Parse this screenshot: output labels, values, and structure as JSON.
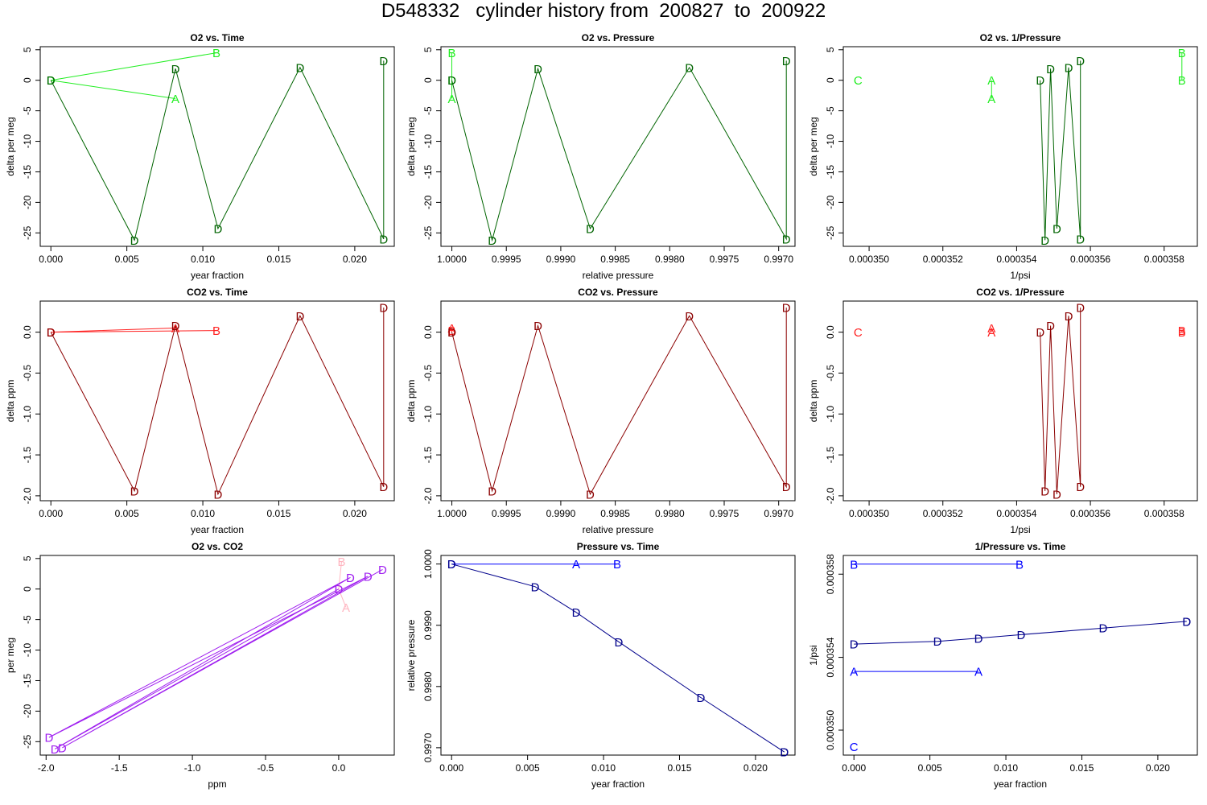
{
  "page": {
    "title": "D548332   cylinder history from  200827  to  200922"
  },
  "colors": {
    "o2_light": "#22ee22",
    "o2_dark": "#006400",
    "co2_light": "#ff2222",
    "co2_dark": "#8b0000",
    "oc_light": "#ffb6c1",
    "oc_dark": "#a020f0",
    "p_light": "#0000ff",
    "p_dark": "#00008b"
  },
  "chart_data": [
    {
      "type": "line",
      "title": "O2 vs. Time",
      "xlabel": "year fraction",
      "ylabel": "delta per meg",
      "xlim": [
        -0.0007,
        0.0226
      ],
      "ylim": [
        -27.2,
        5.5
      ],
      "xticks": [
        0,
        0.005,
        0.01,
        0.015,
        0.02
      ],
      "xtick_labels": [
        "0.000",
        "0.005",
        "0.010",
        "0.015",
        "0.020"
      ],
      "yticks": [
        5,
        0,
        -5,
        -10,
        -15,
        -20,
        -25
      ],
      "ytick_labels": [
        "5",
        "0",
        "-5",
        "-10",
        "-15",
        "-20",
        "-25"
      ],
      "series": [
        {
          "style": "light",
          "points": [
            [
              0,
              0,
              "D"
            ],
            [
              0.0109,
              4.5,
              "B"
            ],
            [
              0,
              0,
              "D"
            ],
            [
              0.0082,
              -3.0,
              "A"
            ],
            [
              0,
              0,
              "D"
            ]
          ]
        },
        {
          "style": "dark",
          "points": [
            [
              0,
              0,
              "D"
            ],
            [
              0.0055,
              -26.2,
              "D"
            ],
            [
              0.0082,
              1.9,
              "D"
            ],
            [
              0.011,
              -24.3,
              "D"
            ],
            [
              0.0164,
              2.1,
              "D"
            ],
            [
              0.0219,
              -26.0,
              "D"
            ],
            [
              0.0219,
              3.2,
              "D"
            ]
          ]
        }
      ]
    },
    {
      "type": "line",
      "title": "O2 vs. Pressure",
      "xlabel": "relative pressure",
      "ylabel": "delta per meg",
      "xlim": [
        1.0001,
        0.99685
      ],
      "ylim": [
        -27.2,
        5.5
      ],
      "xticks": [
        1.0,
        0.9995,
        0.999,
        0.9985,
        0.998,
        0.9975,
        0.997
      ],
      "xtick_labels": [
        "1.0000",
        "0.9995",
        "0.9990",
        "0.9985",
        "0.9980",
        "0.9975",
        "0.9970"
      ],
      "yticks": [
        5,
        0,
        -5,
        -10,
        -15,
        -20,
        -25
      ],
      "ytick_labels": [
        "5",
        "0",
        "-5",
        "-10",
        "-15",
        "-20",
        "-25"
      ],
      "series": [
        {
          "style": "light",
          "points": [
            [
              1.0,
              4.5,
              "B"
            ],
            [
              1.0,
              0,
              "D"
            ],
            [
              1.0,
              -3.0,
              "A"
            ]
          ]
        },
        {
          "style": "dark",
          "points": [
            [
              1.0,
              0,
              "D"
            ],
            [
              0.99963,
              -26.2,
              "D"
            ],
            [
              0.99921,
              1.9,
              "D"
            ],
            [
              0.99873,
              -24.3,
              "D"
            ],
            [
              0.99782,
              2.1,
              "D"
            ],
            [
              0.99693,
              -26.0,
              "D"
            ],
            [
              0.99693,
              3.2,
              "D"
            ]
          ]
        }
      ]
    },
    {
      "type": "line",
      "title": "O2 vs. 1/Pressure",
      "xlabel": "1/psi",
      "ylabel": "delta per meg",
      "xlim": [
        0.0003493,
        0.0003589
      ],
      "ylim": [
        -27.2,
        5.5
      ],
      "xticks": [
        0.00035,
        0.000352,
        0.000354,
        0.000356,
        0.000358
      ],
      "xtick_labels": [
        "0.000350",
        "0.000352",
        "0.000354",
        "0.000356",
        "0.000358"
      ],
      "yticks": [
        5,
        0,
        -5,
        -10,
        -15,
        -20,
        -25
      ],
      "ytick_labels": [
        "5",
        "0",
        "-5",
        "-10",
        "-15",
        "-20",
        "-25"
      ],
      "series": [
        {
          "style": "light",
          "points": [
            [
              0.0003497,
              0,
              "C"
            ]
          ]
        },
        {
          "style": "light",
          "points": [
            [
              0.00035332,
              0,
              "A"
            ],
            [
              0.00035332,
              -3.0,
              "A"
            ]
          ]
        },
        {
          "style": "light",
          "points": [
            [
              0.00035848,
              4.5,
              "B"
            ],
            [
              0.00035848,
              0,
              "B"
            ]
          ]
        },
        {
          "style": "dark",
          "points": [
            [
              0.00035464,
              0,
              "D"
            ],
            [
              0.00035477,
              -26.2,
              "D"
            ],
            [
              0.00035492,
              1.9,
              "D"
            ],
            [
              0.00035509,
              -24.3,
              "D"
            ],
            [
              0.00035541,
              2.1,
              "D"
            ],
            [
              0.00035573,
              -26.0,
              "D"
            ],
            [
              0.00035573,
              3.2,
              "D"
            ]
          ]
        }
      ]
    },
    {
      "type": "line",
      "title": "CO2 vs. Time",
      "xlabel": "year fraction",
      "ylabel": "delta ppm",
      "xlim": [
        -0.0007,
        0.0226
      ],
      "ylim": [
        -2.06,
        0.38
      ],
      "xticks": [
        0,
        0.005,
        0.01,
        0.015,
        0.02
      ],
      "xtick_labels": [
        "0.000",
        "0.005",
        "0.010",
        "0.015",
        "0.020"
      ],
      "yticks": [
        0.0,
        -0.5,
        -1.0,
        -1.5,
        -2.0
      ],
      "ytick_labels": [
        "0.0",
        "-0.5",
        "-1.0",
        "-1.5",
        "-2.0"
      ],
      "series": [
        {
          "style": "light",
          "points": [
            [
              0,
              0,
              "D"
            ],
            [
              0.0109,
              0.02,
              "B"
            ],
            [
              0,
              0,
              "D"
            ],
            [
              0.0082,
              0.05,
              "A"
            ],
            [
              0,
              0,
              "D"
            ]
          ]
        },
        {
          "style": "dark",
          "points": [
            [
              0,
              0,
              "D"
            ],
            [
              0.0055,
              -1.94,
              "D"
            ],
            [
              0.0082,
              0.08,
              "D"
            ],
            [
              0.011,
              -1.98,
              "D"
            ],
            [
              0.0164,
              0.2,
              "D"
            ],
            [
              0.0219,
              -1.89,
              "D"
            ],
            [
              0.0219,
              0.3,
              "D"
            ]
          ]
        }
      ]
    },
    {
      "type": "line",
      "title": "CO2 vs. Pressure",
      "xlabel": "relative pressure",
      "ylabel": "delta ppm",
      "xlim": [
        1.0001,
        0.99685
      ],
      "ylim": [
        -2.06,
        0.38
      ],
      "xticks": [
        1.0,
        0.9995,
        0.999,
        0.9985,
        0.998,
        0.9975,
        0.997
      ],
      "xtick_labels": [
        "1.0000",
        "0.9995",
        "0.9990",
        "0.9985",
        "0.9980",
        "0.9975",
        "0.9970"
      ],
      "yticks": [
        0.0,
        -0.5,
        -1.0,
        -1.5,
        -2.0
      ],
      "ytick_labels": [
        "0.0",
        "-0.5",
        "-1.0",
        "-1.5",
        "-2.0"
      ],
      "series": [
        {
          "style": "light",
          "points": [
            [
              1.0,
              0.02,
              "B"
            ],
            [
              1.0,
              0,
              "D"
            ],
            [
              1.0,
              0.05,
              "A"
            ]
          ]
        },
        {
          "style": "dark",
          "points": [
            [
              1.0,
              0,
              "D"
            ],
            [
              0.99963,
              -1.94,
              "D"
            ],
            [
              0.99921,
              0.08,
              "D"
            ],
            [
              0.99873,
              -1.98,
              "D"
            ],
            [
              0.99782,
              0.2,
              "D"
            ],
            [
              0.99693,
              -1.89,
              "D"
            ],
            [
              0.99693,
              0.3,
              "D"
            ]
          ]
        }
      ]
    },
    {
      "type": "line",
      "title": "CO2 vs. 1/Pressure",
      "xlabel": "1/psi",
      "ylabel": "delta ppm",
      "xlim": [
        0.0003493,
        0.0003589
      ],
      "ylim": [
        -2.06,
        0.38
      ],
      "xticks": [
        0.00035,
        0.000352,
        0.000354,
        0.000356,
        0.000358
      ],
      "xtick_labels": [
        "0.000350",
        "0.000352",
        "0.000354",
        "0.000356",
        "0.000358"
      ],
      "yticks": [
        0.0,
        -0.5,
        -1.0,
        -1.5,
        -2.0
      ],
      "ytick_labels": [
        "0.0",
        "-0.5",
        "-1.0",
        "-1.5",
        "-2.0"
      ],
      "series": [
        {
          "style": "light",
          "points": [
            [
              0.0003497,
              0,
              "C"
            ]
          ]
        },
        {
          "style": "light",
          "points": [
            [
              0.00035332,
              0,
              "A"
            ],
            [
              0.00035332,
              0.05,
              "A"
            ]
          ]
        },
        {
          "style": "light",
          "points": [
            [
              0.00035848,
              0.02,
              "B"
            ],
            [
              0.00035848,
              0,
              "B"
            ]
          ]
        },
        {
          "style": "dark",
          "points": [
            [
              0.00035464,
              0,
              "D"
            ],
            [
              0.00035477,
              -1.94,
              "D"
            ],
            [
              0.00035492,
              0.08,
              "D"
            ],
            [
              0.00035509,
              -1.98,
              "D"
            ],
            [
              0.00035541,
              0.2,
              "D"
            ],
            [
              0.00035573,
              -1.89,
              "D"
            ],
            [
              0.00035573,
              0.3,
              "D"
            ]
          ]
        }
      ]
    },
    {
      "type": "line",
      "title": "O2 vs. CO2",
      "xlabel": "ppm",
      "ylabel": "per meg",
      "xlim": [
        -2.04,
        0.38
      ],
      "ylim": [
        -27.2,
        5.5
      ],
      "xticks": [
        -2.0,
        -1.5,
        -1.0,
        -0.5,
        0.0
      ],
      "xtick_labels": [
        "-2.0",
        "-1.5",
        "-1.0",
        "-0.5",
        "0.0"
      ],
      "yticks": [
        5,
        0,
        -5,
        -10,
        -15,
        -20,
        -25
      ],
      "ytick_labels": [
        "5",
        "0",
        "-5",
        "-10",
        "-15",
        "-20",
        "-25"
      ],
      "series": [
        {
          "style": "light",
          "points": [
            [
              0.02,
              4.5,
              "B"
            ],
            [
              0,
              0,
              "D"
            ],
            [
              0.05,
              -3.0,
              "A"
            ]
          ]
        },
        {
          "style": "dark",
          "points": [
            [
              0,
              0,
              "D"
            ],
            [
              -1.94,
              -26.2,
              "D"
            ],
            [
              0.08,
              1.9,
              "D"
            ],
            [
              -1.98,
              -24.3,
              "D"
            ],
            [
              0.2,
              2.1,
              "D"
            ],
            [
              -1.89,
              -26.0,
              "D"
            ],
            [
              0.3,
              3.2,
              "D"
            ]
          ]
        }
      ]
    },
    {
      "type": "line",
      "title": "Pressure vs. Time",
      "xlabel": "year fraction",
      "ylabel": "relative pressure",
      "xlim": [
        -0.0007,
        0.0226
      ],
      "ylim": [
        0.99688,
        1.00014
      ],
      "xticks": [
        0,
        0.005,
        0.01,
        0.015,
        0.02
      ],
      "xtick_labels": [
        "0.000",
        "0.005",
        "0.010",
        "0.015",
        "0.020"
      ],
      "yticks": [
        1.0,
        0.999,
        0.998,
        0.997
      ],
      "ytick_labels": [
        "1.0000",
        "0.9990",
        "0.9980",
        "0.9970"
      ],
      "series": [
        {
          "style": "light",
          "points": [
            [
              0,
              1.0,
              "D"
            ],
            [
              0.0082,
              1.0,
              "A"
            ],
            [
              0.0109,
              1.0,
              "B"
            ]
          ]
        },
        {
          "style": "dark",
          "points": [
            [
              0,
              1.0,
              "D"
            ],
            [
              0.0055,
              0.99963,
              "D"
            ],
            [
              0.0082,
              0.99921,
              "D"
            ],
            [
              0.011,
              0.99873,
              "D"
            ],
            [
              0.0164,
              0.99782,
              "D"
            ],
            [
              0.0219,
              0.99693,
              "D"
            ],
            [
              0.0219,
              0.99693,
              "D"
            ]
          ]
        }
      ]
    },
    {
      "type": "line",
      "title": "1/Pressure vs. Time",
      "xlabel": "year fraction",
      "ylabel": "1/psi",
      "xlim": [
        -0.0007,
        0.0226
      ],
      "ylim": [
        0.0003493,
        0.0003589
      ],
      "xticks": [
        0,
        0.005,
        0.01,
        0.015,
        0.02
      ],
      "xtick_labels": [
        "0.000",
        "0.005",
        "0.010",
        "0.015",
        "0.020"
      ],
      "yticks": [
        0.0003505,
        0.000354,
        0.000358
      ],
      "ytick_labels": [
        "0.000350",
        "0.000354",
        "0.000358"
      ],
      "series": [
        {
          "style": "light",
          "points": [
            [
              0,
              0.0003497,
              "C"
            ]
          ]
        },
        {
          "style": "light",
          "points": [
            [
              0,
              0.00035848,
              "B"
            ],
            [
              0.0109,
              0.00035848,
              "B"
            ]
          ]
        },
        {
          "style": "light",
          "points": [
            [
              0,
              0.00035332,
              "A"
            ],
            [
              0.0082,
              0.00035332,
              "A"
            ]
          ]
        },
        {
          "style": "dark",
          "points": [
            [
              0,
              0.00035464,
              "D"
            ],
            [
              0.0055,
              0.00035477,
              "D"
            ],
            [
              0.0082,
              0.00035492,
              "D"
            ],
            [
              0.011,
              0.00035509,
              "D"
            ],
            [
              0.0164,
              0.00035541,
              "D"
            ],
            [
              0.0219,
              0.00035573,
              "D"
            ],
            [
              0.0219,
              0.00035573,
              "D"
            ]
          ]
        }
      ]
    }
  ]
}
